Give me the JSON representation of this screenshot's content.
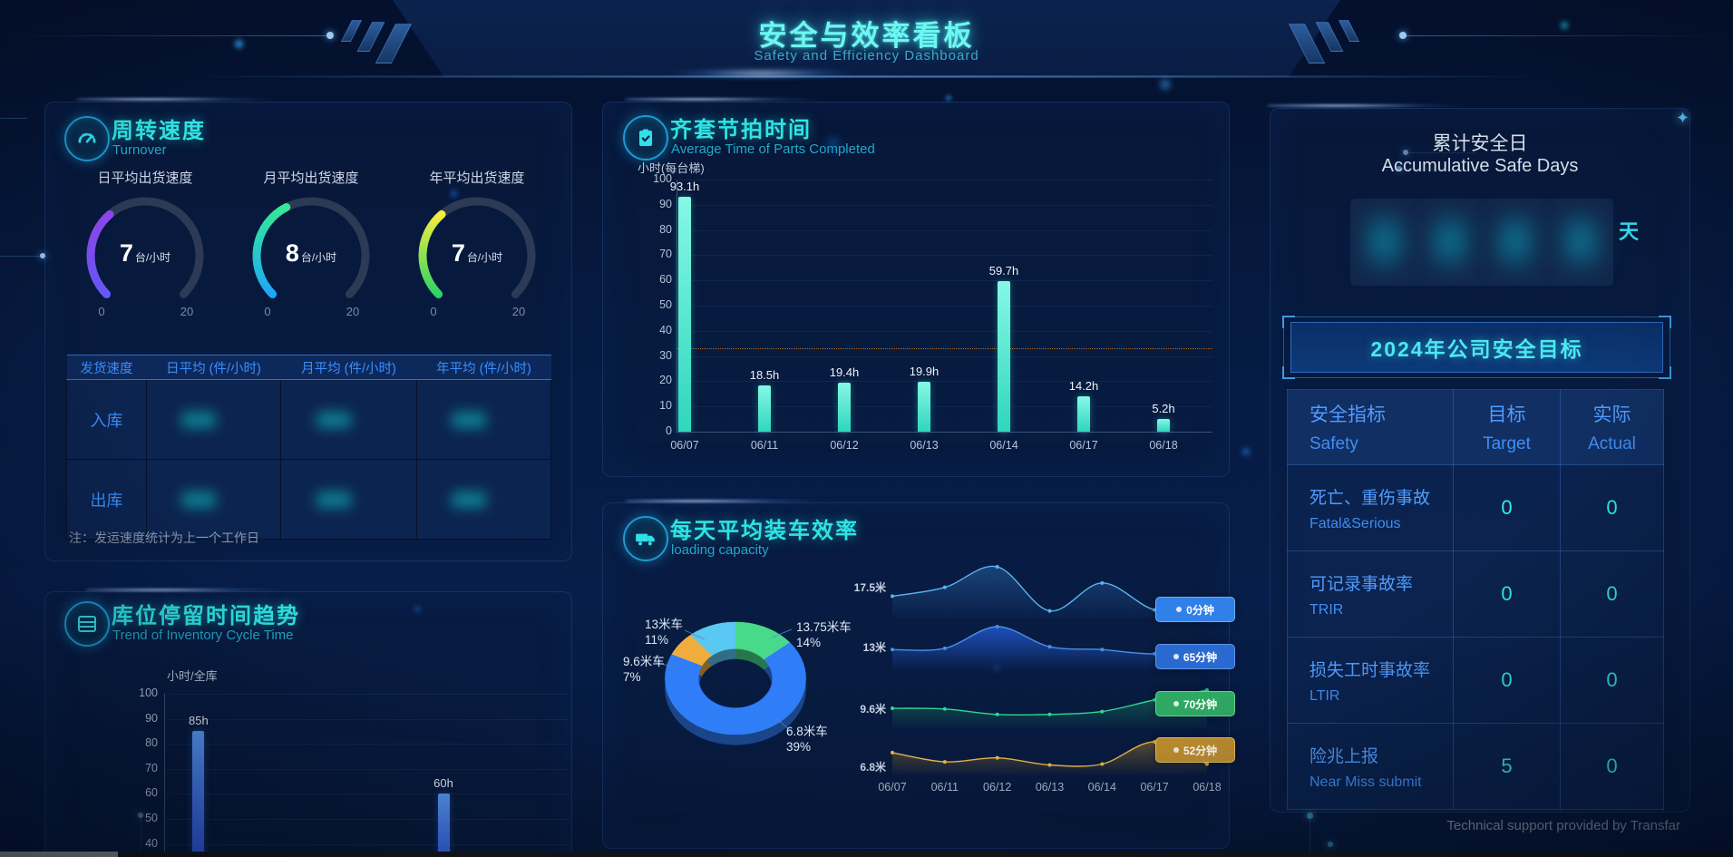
{
  "header": {
    "title": "安全与效率看板",
    "subtitle": "Safety and Efficiency Dashboard"
  },
  "colors": {
    "accent_cyan": "#40e8e0",
    "accent_blue": "#3c8dff",
    "panel_title": "#2fe3e3",
    "subtitle_teal": "#23a8c8",
    "bar_cyan": "#3fe0c8",
    "bar_blue": "#2f6bf0",
    "value_cyan": "#35eaea",
    "reference_line_orange": "#b06a28"
  },
  "turnover_panel": {
    "title": "周转速度",
    "subtitle": "Turnover",
    "icon": "gauge-icon",
    "gauges": [
      {
        "label": "日平均出货速度",
        "value": 7,
        "unit": "台/小时",
        "min": 0,
        "max": 20,
        "arc_color_bottom": "#6858f8",
        "arc_color_top": "#9146f0"
      },
      {
        "label": "月平均出货速度",
        "value": 8,
        "unit": "台/小时",
        "min": 0,
        "max": 20,
        "arc_color_bottom": "#1ea8f8",
        "arc_color_top": "#35e896"
      },
      {
        "label": "年平均出货速度",
        "value": 7,
        "unit": "台/小时",
        "min": 0,
        "max": 20,
        "arc_color_bottom": "#2ed368",
        "arc_color_top": "#f5ee3c"
      }
    ],
    "table": {
      "headers": [
        "发货速度",
        "日平均 (件/小时)",
        "月平均 (件/小时)",
        "年平均 (件/小时)"
      ],
      "rows": [
        {
          "label": "入库",
          "values_blurred": true
        },
        {
          "label": "出库",
          "values_blurred": true
        }
      ]
    },
    "note": "注：发运速度统计为上一个工作日"
  },
  "inventory_panel": {
    "title": "库位停留时间趋势",
    "subtitle": "Trend of Inventory Cycle Time",
    "icon": "shelf-icon",
    "unit_label": "小时/全库"
  },
  "parts_panel": {
    "title": "齐套节拍时间",
    "subtitle": "Average Time of Parts Completed",
    "icon": "clipboard-check-icon",
    "unit_label": "小时(每台梯)"
  },
  "loading_panel": {
    "title": "每天平均装车效率",
    "subtitle": "loading capacity",
    "icon": "truck-icon"
  },
  "safety_panel": {
    "title_cn": "累计安全日",
    "title_en": "Accumulative Safe Days",
    "days_value_blurred": true,
    "days_unit": "天",
    "goal_button": "2024年公司安全目标",
    "table": {
      "headers": [
        {
          "cn": "安全指标",
          "en": "Safety"
        },
        {
          "cn": "目标",
          "en": "Target"
        },
        {
          "cn": "实际",
          "en": "Actual"
        }
      ],
      "rows": [
        {
          "cn": "死亡、重伤事故",
          "en": "Fatal&Serious",
          "target": "0",
          "actual": "0"
        },
        {
          "cn": "可记录事故率",
          "en": "TRIR",
          "target": "0",
          "actual": "0"
        },
        {
          "cn": "损失工时事故率",
          "en": "LTIR",
          "target": "0",
          "actual": "0"
        },
        {
          "cn": "险兆上报",
          "en": "Near Miss submit",
          "target": "5",
          "actual": "0"
        }
      ]
    }
  },
  "footer": {
    "credit": "Technical support provided by Transfar"
  },
  "chart_data": [
    {
      "id": "parts_takt",
      "type": "bar",
      "title": "齐套节拍时间",
      "ylabel": "小时(每台梯)",
      "categories": [
        "06/07",
        "06/11",
        "06/12",
        "06/13",
        "06/14",
        "06/17",
        "06/18"
      ],
      "values": [
        93.1,
        18.5,
        19.4,
        19.9,
        59.7,
        14.2,
        5.2
      ],
      "labels": [
        "93.1h",
        "18.5h",
        "19.4h",
        "19.9h",
        "59.7h",
        "14.2h",
        "5.2h"
      ],
      "ylim": [
        0,
        100
      ],
      "ytick_step": 10,
      "grid": true,
      "reference_line": 33
    },
    {
      "id": "inventory_trend",
      "type": "bar",
      "title": "库位停留时间趋势",
      "ylabel": "小时/全库",
      "ylim": [
        0,
        100
      ],
      "ytick_step": 10,
      "visible_note": "chart truncated at screen bottom; ticks 100 down to 40 visible, x labels hidden",
      "bars": [
        {
          "label": "85h",
          "value": 85,
          "x_frac": 0.083
        },
        {
          "label": "60h",
          "value": 60,
          "x_frac": 0.69
        }
      ]
    },
    {
      "id": "truck_mix",
      "type": "pie",
      "title": "每天平均装车效率",
      "slices": [
        {
          "label": "13.75米车",
          "pct": 14,
          "color": "#49d98b"
        },
        {
          "label": "6.8米车",
          "pct": 39,
          "color": "#2f7df7",
          "fills_remainder": true
        },
        {
          "label": "9.6米车",
          "pct": 7,
          "color": "#f0ad3e"
        },
        {
          "label": "13米车",
          "pct": 11,
          "color": "#59c8f2"
        }
      ]
    },
    {
      "id": "loading_lines",
      "type": "area",
      "x": [
        "06/07",
        "06/11",
        "06/12",
        "06/13",
        "06/14",
        "06/17",
        "06/18"
      ],
      "series": [
        {
          "name": "17.5米",
          "badge": "0分钟",
          "line_color": "#5ab4f0",
          "color": "#3c8cdc",
          "fill_opacity": 0.35,
          "badge_bg": "#2f80e8",
          "badge_border": "#6ab0ff",
          "values": [
            40,
            58,
            100,
            10,
            67,
            12,
            12
          ]
        },
        {
          "name": "13米",
          "badge": "65分钟",
          "line_color": "#4a90e8",
          "color": "#2055c8",
          "fill_opacity": 0.9,
          "badge_bg": "#2a6ad0",
          "badge_border": "#5a96e8",
          "values": [
            45,
            48,
            100,
            52,
            45,
            35,
            50
          ]
        },
        {
          "name": "9.6米",
          "badge": "70分钟",
          "line_color": "#2fd890",
          "color": "#1ea86a",
          "fill_opacity": 0.45,
          "badge_bg": "#2fa862",
          "badge_border": "#5ad898",
          "values": [
            50,
            48,
            33,
            33,
            41,
            73,
            100
          ]
        },
        {
          "name": "6.8米",
          "badge": "52分钟",
          "line_color": "#e8b44a",
          "color": "#c08a2a",
          "fill_opacity": 0.45,
          "badge_bg": "#c09030",
          "badge_border": "#e8c060",
          "values": [
            65,
            35,
            48,
            25,
            28,
            100,
            28
          ]
        }
      ]
    }
  ]
}
